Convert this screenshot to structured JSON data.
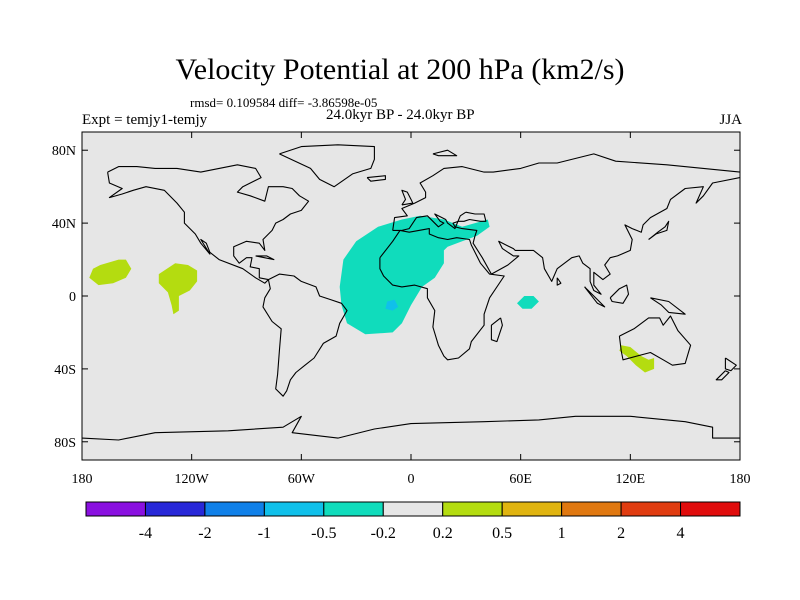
{
  "chart_data": {
    "type": "map-contour",
    "title": "Velocity Potential at 200 hPa (km2/s)",
    "stats": "rmsd= 0.109584  diff= -3.86598e-05",
    "experiment": "Expt = temjy1-temjy",
    "period": "24.0kyr BP - 24.0kyr BP",
    "season": "JJA",
    "lon_range": [
      -180,
      180
    ],
    "lat_range": [
      -90,
      90
    ],
    "x_ticks": [
      -180,
      -120,
      -60,
      0,
      60,
      120,
      180
    ],
    "x_tick_labels": [
      "180",
      "120W",
      "60W",
      "0",
      "60E",
      "120E",
      "180"
    ],
    "y_ticks": [
      80,
      40,
      0,
      -40,
      -80
    ],
    "y_tick_labels": [
      "80N",
      "40N",
      "0",
      "40S",
      "80S"
    ],
    "colorbar": {
      "colors": [
        "#8a10e0",
        "#2828d8",
        "#1080e8",
        "#10c0ea",
        "#10dcbc",
        "#e6e6e6",
        "#b4dc10",
        "#e0b410",
        "#e07810",
        "#e03c10",
        "#e00c0c"
      ],
      "labels": [
        "-4",
        "-2",
        "-1",
        "-0.5",
        "-0.2",
        "0.2",
        "0.5",
        "1",
        "2",
        "4"
      ]
    },
    "regions": [
      {
        "name": "central-pacific-positive",
        "level_index": 6,
        "polygon": [
          [
            -170,
            17
          ],
          [
            -160,
            20
          ],
          [
            -156,
            20
          ],
          [
            -153,
            15
          ],
          [
            -156,
            10
          ],
          [
            -163,
            7
          ],
          [
            -171,
            6
          ],
          [
            -176,
            10
          ],
          [
            -174,
            15
          ]
        ]
      },
      {
        "name": "east-pacific-positive",
        "level_index": 6,
        "polygon": [
          [
            -138,
            12
          ],
          [
            -129,
            18
          ],
          [
            -122,
            17
          ],
          [
            -117,
            14
          ],
          [
            -117,
            8
          ],
          [
            -121,
            3
          ],
          [
            -127,
            0
          ],
          [
            -127,
            -8
          ],
          [
            -130,
            -10
          ],
          [
            -131,
            -5
          ],
          [
            -133,
            2
          ],
          [
            -138,
            7
          ]
        ]
      },
      {
        "name": "atlantic-africa-negative",
        "level_index": 4,
        "polygon": [
          [
            -37,
            20
          ],
          [
            -30,
            30
          ],
          [
            -18,
            38
          ],
          [
            -5,
            42
          ],
          [
            5,
            44
          ],
          [
            18,
            42
          ],
          [
            28,
            38
          ],
          [
            42,
            42
          ],
          [
            43,
            38
          ],
          [
            36,
            33
          ],
          [
            28,
            30
          ],
          [
            20,
            27
          ],
          [
            18,
            25
          ],
          [
            18,
            18
          ],
          [
            13,
            10
          ],
          [
            6,
            5
          ],
          [
            0,
            -5
          ],
          [
            -5,
            -15
          ],
          [
            -10,
            -20
          ],
          [
            -25,
            -21
          ],
          [
            -35,
            -15
          ],
          [
            -38,
            -5
          ],
          [
            -39,
            5
          ]
        ]
      },
      {
        "name": "atlantic-inner-core",
        "level_index": 3,
        "polygon": [
          [
            -13,
            -3
          ],
          [
            -9,
            -2
          ],
          [
            -7,
            -6
          ],
          [
            -10,
            -8
          ],
          [
            -14,
            -7
          ]
        ]
      },
      {
        "name": "indian-ocean-negative",
        "level_index": 4,
        "polygon": [
          [
            62,
            0
          ],
          [
            67,
            0
          ],
          [
            70,
            -3
          ],
          [
            66,
            -7
          ],
          [
            61,
            -7
          ],
          [
            58,
            -4
          ]
        ]
      },
      {
        "name": "australia-positive",
        "level_index": 6,
        "polygon": [
          [
            115,
            -27
          ],
          [
            120,
            -28
          ],
          [
            126,
            -33
          ],
          [
            130,
            -35
          ],
          [
            133,
            -34
          ],
          [
            133,
            -40
          ],
          [
            128,
            -42
          ],
          [
            123,
            -38
          ],
          [
            118,
            -33
          ],
          [
            114,
            -30
          ]
        ]
      }
    ]
  }
}
